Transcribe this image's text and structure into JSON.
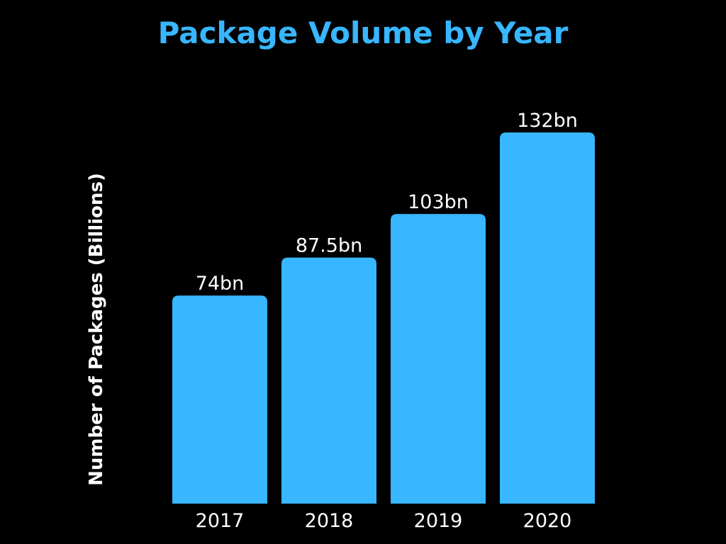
{
  "colors": {
    "background": "#000000",
    "bar": "#38b6ff",
    "title": "#38b6ff",
    "text": "#ffffff"
  },
  "chart_data": {
    "type": "bar",
    "title": "Package Volume by Year",
    "xlabel": "",
    "ylabel": "Number of Packages (Billions)",
    "categories": [
      "2017",
      "2018",
      "2019",
      "2020"
    ],
    "values": [
      74,
      87.5,
      103,
      132
    ],
    "data_labels": [
      "74bn",
      "87.5bn",
      "103bn",
      "132bn"
    ],
    "ylim": [
      0,
      132
    ],
    "grid": false,
    "legend": "none"
  }
}
